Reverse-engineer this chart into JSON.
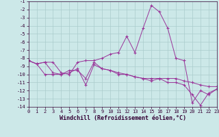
{
  "xlabel": "Windchill (Refroidissement éolien,°C)",
  "background_color": "#cce8e8",
  "grid_color": "#aacccc",
  "line_color": "#993399",
  "marker_color": "#993399",
  "x": [
    0,
    1,
    2,
    3,
    4,
    5,
    6,
    7,
    8,
    9,
    10,
    11,
    12,
    13,
    14,
    15,
    16,
    17,
    18,
    19,
    20,
    21,
    22,
    23
  ],
  "series1": [
    -8.3,
    -8.7,
    -8.5,
    -8.5,
    -9.8,
    -10.0,
    -8.5,
    -8.3,
    -8.3,
    -8.0,
    -7.5,
    -7.3,
    -5.3,
    -7.3,
    -4.3,
    -1.5,
    -2.3,
    -4.3,
    -8.0,
    -8.3,
    -13.5,
    -12.0,
    -12.5,
    -11.8
  ],
  "series2": [
    -8.3,
    -8.7,
    -8.5,
    -9.8,
    -10.0,
    -9.5,
    -9.5,
    -10.5,
    -8.5,
    -9.3,
    -9.5,
    -9.8,
    -10.0,
    -10.3,
    -10.5,
    -10.5,
    -10.5,
    -10.5,
    -10.5,
    -10.8,
    -11.0,
    -11.3,
    -11.5,
    -11.5
  ],
  "series3": [
    -8.3,
    -8.7,
    -10.0,
    -10.0,
    -10.0,
    -9.8,
    -9.3,
    -11.3,
    -8.8,
    -9.3,
    -9.5,
    -10.0,
    -10.0,
    -10.3,
    -10.5,
    -10.8,
    -10.5,
    -11.0,
    -11.0,
    -11.3,
    -12.5,
    -13.8,
    -12.3,
    -11.8
  ],
  "ylim": [
    -14,
    -1
  ],
  "xlim": [
    0,
    23
  ],
  "yticks": [
    -1,
    -2,
    -3,
    -4,
    -5,
    -6,
    -7,
    -8,
    -9,
    -10,
    -11,
    -12,
    -13,
    -14
  ],
  "xticks": [
    0,
    1,
    2,
    3,
    4,
    5,
    6,
    7,
    8,
    9,
    10,
    11,
    12,
    13,
    14,
    15,
    16,
    17,
    18,
    19,
    20,
    21,
    22,
    23
  ],
  "tick_fontsize": 5,
  "xlabel_fontsize": 6
}
